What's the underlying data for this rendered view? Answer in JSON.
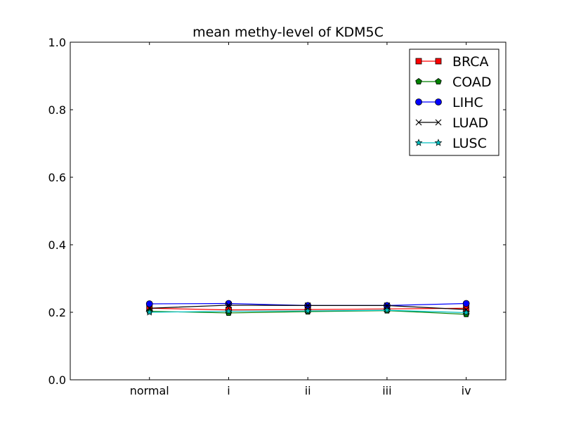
{
  "chart_data": {
    "type": "line",
    "title": "mean methy-level of KDM5C",
    "xlabel": "",
    "ylabel": "",
    "categories": [
      "normal",
      "i",
      "ii",
      "iii",
      "iv"
    ],
    "xlim": [
      -1,
      4.5
    ],
    "ylim": [
      0.0,
      1.0
    ],
    "yticks": [
      0.0,
      0.2,
      0.4,
      0.6,
      0.8,
      1.0
    ],
    "ytick_labels": [
      "0.0",
      "0.2",
      "0.4",
      "0.6",
      "0.8",
      "1.0"
    ],
    "grid": false,
    "legend_position": "top-right",
    "series": [
      {
        "name": "BRCA",
        "color": "#ff0000",
        "marker": "square",
        "values": [
          0.212,
          0.207,
          0.208,
          0.21,
          0.212
        ]
      },
      {
        "name": "COAD",
        "color": "#008000",
        "marker": "pentagon",
        "values": [
          0.203,
          0.198,
          0.202,
          0.205,
          0.194
        ]
      },
      {
        "name": "LIHC",
        "color": "#0000ff",
        "marker": "circle",
        "values": [
          0.225,
          0.226,
          0.22,
          0.22,
          0.226
        ]
      },
      {
        "name": "LUAD",
        "color": "#000000",
        "marker": "x",
        "values": [
          0.212,
          0.221,
          0.22,
          0.22,
          0.208
        ]
      },
      {
        "name": "LUSC",
        "color": "#00bfbf",
        "marker": "star",
        "values": [
          0.2,
          0.203,
          0.204,
          0.206,
          0.199
        ]
      }
    ]
  }
}
